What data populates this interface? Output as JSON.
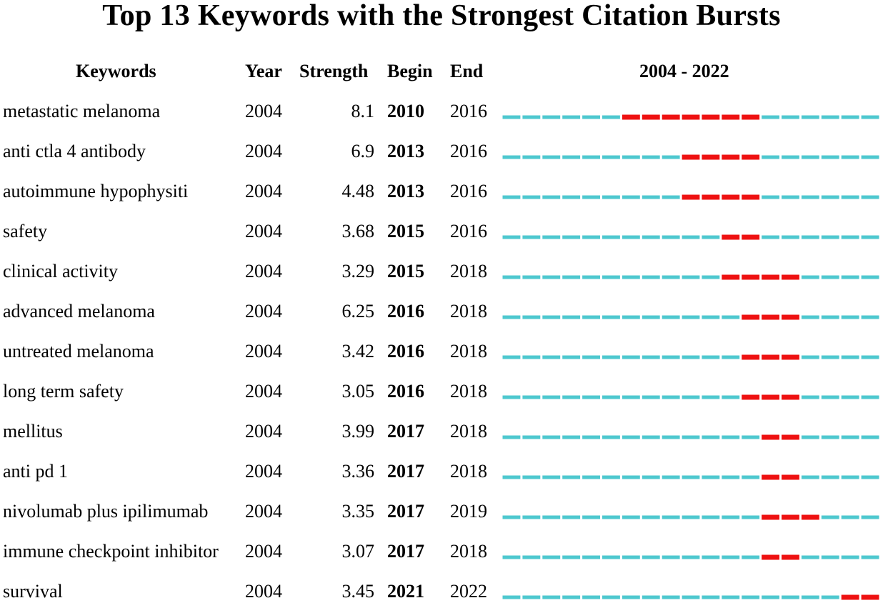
{
  "colors": {
    "base": "#4ec8cf",
    "burst": "#ee1111"
  },
  "chart_data": {
    "type": "table",
    "title": "Top 13 Keywords with the Strongest Citation Bursts",
    "columns": [
      "Keywords",
      "Year",
      "Strength",
      "Begin",
      "End",
      "2004 - 2022"
    ],
    "range": [
      2004,
      2022
    ],
    "range_label": "2004 - 2022",
    "rows": [
      {
        "keyword": "metastatic melanoma",
        "year": "2004",
        "strength": "8.1",
        "begin": "2010",
        "end": "2016"
      },
      {
        "keyword": "anti ctla 4 antibody",
        "year": "2004",
        "strength": "6.9",
        "begin": "2013",
        "end": "2016"
      },
      {
        "keyword": "autoimmune hypophysiti",
        "year": "2004",
        "strength": "4.48",
        "begin": "2013",
        "end": "2016"
      },
      {
        "keyword": "safety",
        "year": "2004",
        "strength": "3.68",
        "begin": "2015",
        "end": "2016"
      },
      {
        "keyword": "clinical activity",
        "year": "2004",
        "strength": "3.29",
        "begin": "2015",
        "end": "2018"
      },
      {
        "keyword": "advanced melanoma",
        "year": "2004",
        "strength": "6.25",
        "begin": "2016",
        "end": "2018"
      },
      {
        "keyword": "untreated melanoma",
        "year": "2004",
        "strength": "3.42",
        "begin": "2016",
        "end": "2018"
      },
      {
        "keyword": "long term safety",
        "year": "2004",
        "strength": "3.05",
        "begin": "2016",
        "end": "2018"
      },
      {
        "keyword": "mellitus",
        "year": "2004",
        "strength": "3.99",
        "begin": "2017",
        "end": "2018"
      },
      {
        "keyword": "anti pd 1",
        "year": "2004",
        "strength": "3.36",
        "begin": "2017",
        "end": "2018"
      },
      {
        "keyword": "nivolumab plus ipilimumab",
        "year": "2004",
        "strength": "3.35",
        "begin": "2017",
        "end": "2019"
      },
      {
        "keyword": "immune checkpoint inhibitor",
        "year": "2004",
        "strength": "3.07",
        "begin": "2017",
        "end": "2018"
      },
      {
        "keyword": "survival",
        "year": "2004",
        "strength": "3.45",
        "begin": "2021",
        "end": "2022"
      }
    ]
  }
}
